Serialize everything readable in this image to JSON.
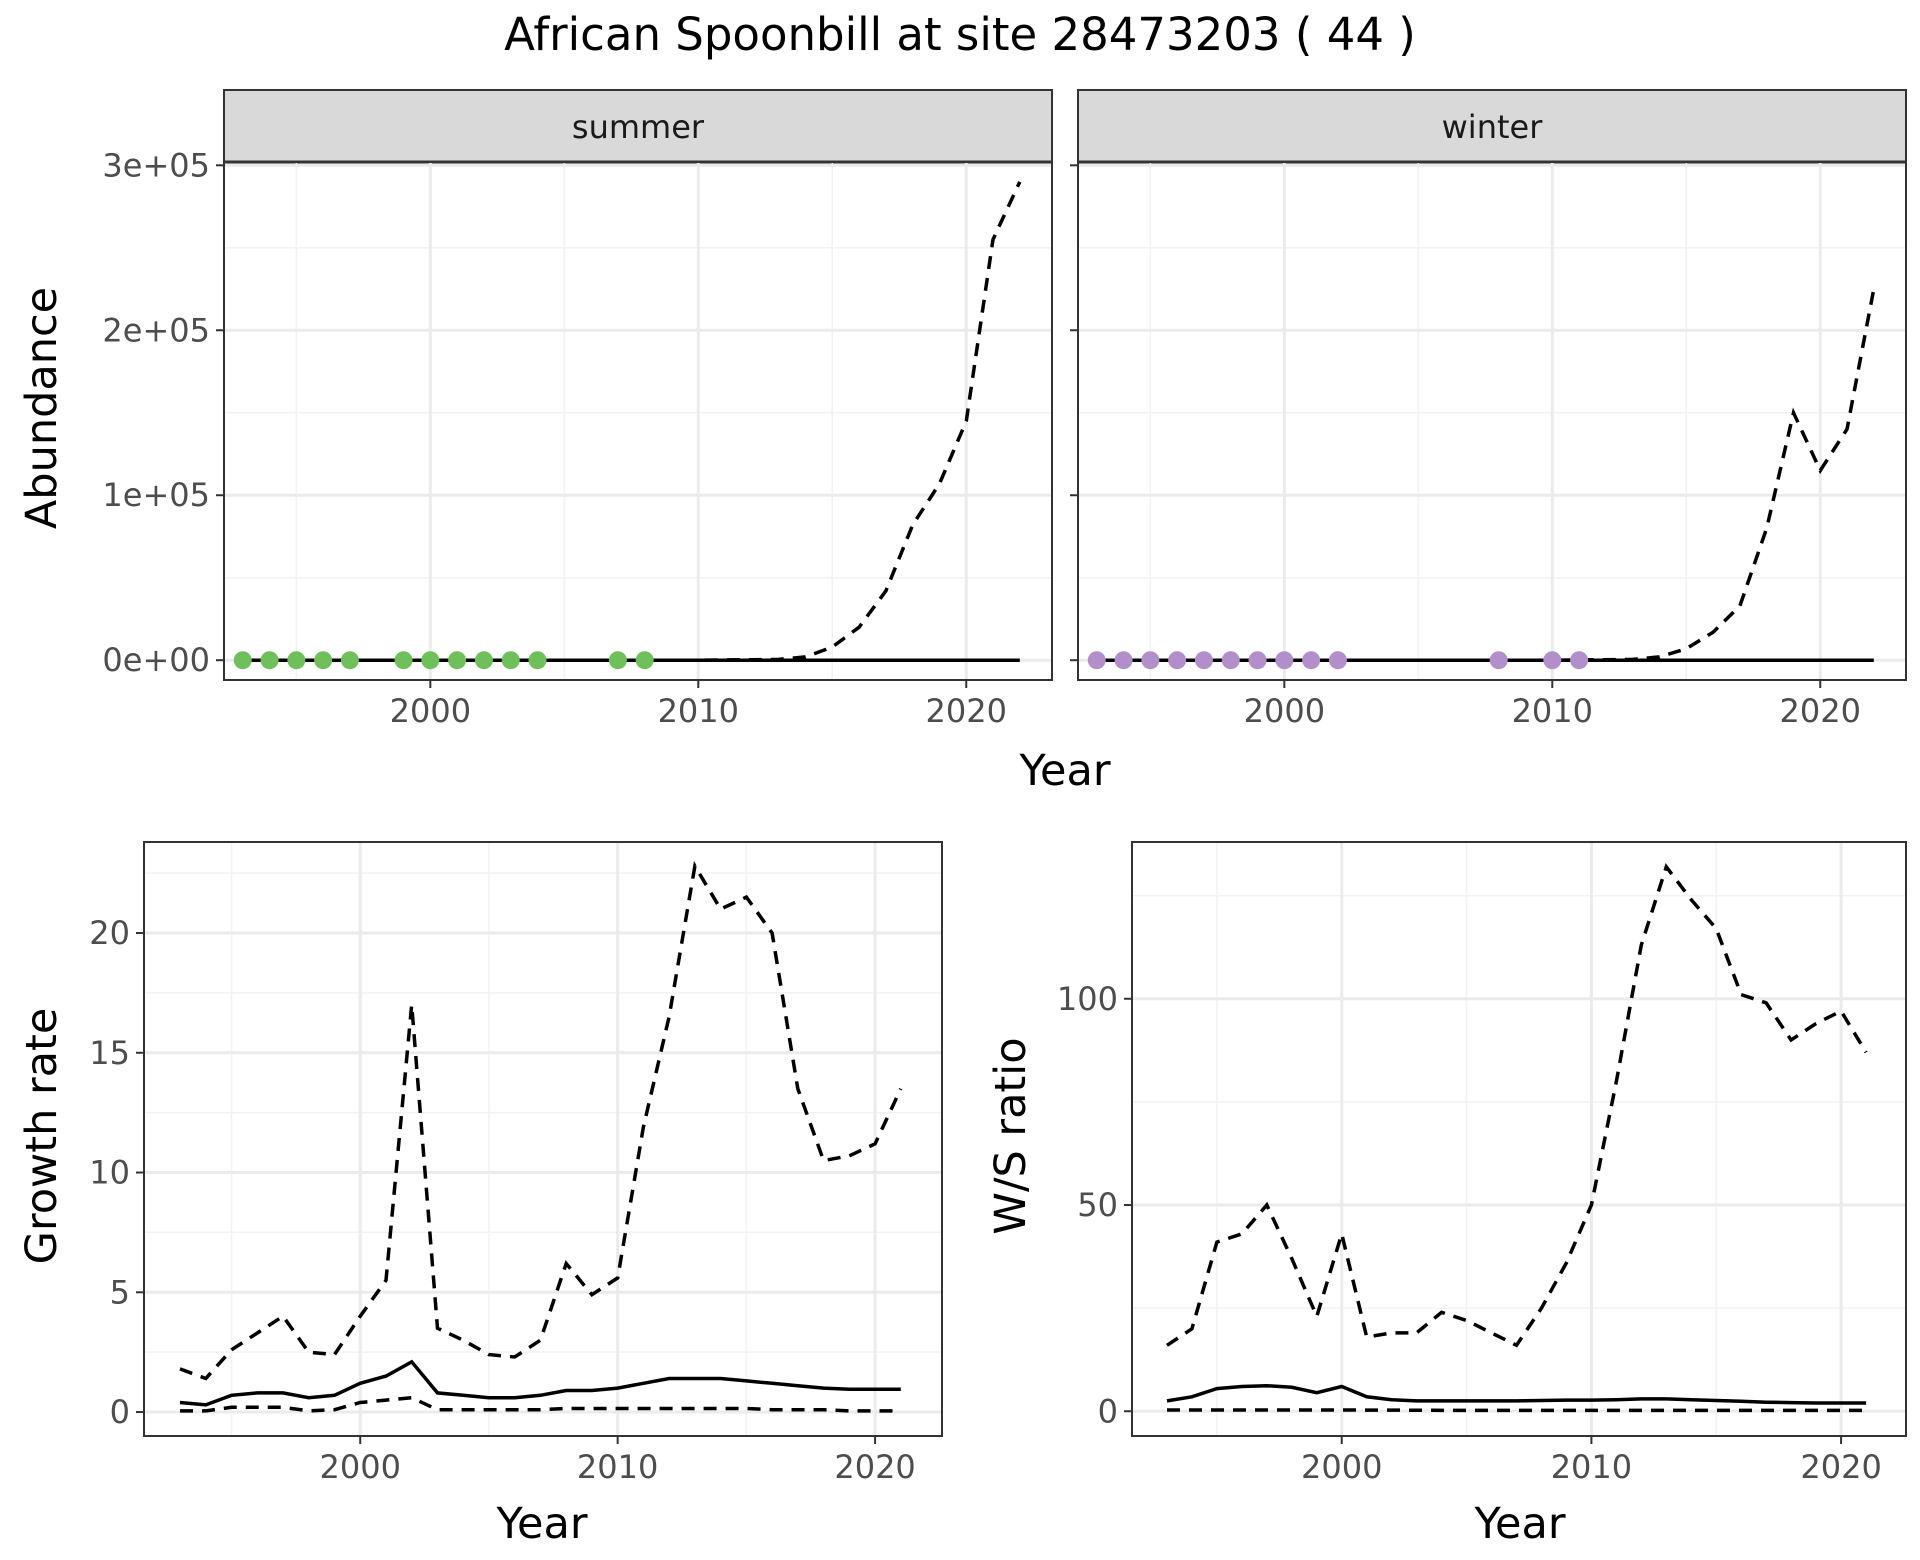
{
  "figure_title": "African Spoonbill at site 28473203 ( 44 )",
  "chart_data": [
    {
      "id": "abundance-summer",
      "type": "line",
      "facet": "summer",
      "xlabel": "",
      "ylabel": "Abundance",
      "xlim": [
        1992.3,
        2023.2
      ],
      "ylim": [
        -12000,
        302000
      ],
      "x_ticks": [
        2000,
        2010,
        2020
      ],
      "x_tick_labels": [
        "2000",
        "2010",
        "2020"
      ],
      "y_ticks": [
        0,
        100000,
        200000,
        300000
      ],
      "y_tick_labels": [
        "0e+00",
        "1e+05",
        "2e+05",
        "3e+05"
      ],
      "grid": true,
      "series": [
        {
          "style": "solid",
          "x": [
            1993,
            2022
          ],
          "values": [
            0,
            0
          ]
        },
        {
          "style": "dashed",
          "x": [
            1993,
            1995,
            2000,
            2005,
            2010,
            2013,
            2014,
            2015,
            2016,
            2017,
            2018,
            2019,
            2020,
            2021,
            2022
          ],
          "values": [
            0,
            0,
            0,
            0,
            0,
            500,
            2000,
            8000,
            20000,
            42000,
            82000,
            107000,
            145000,
            255000,
            290000
          ]
        }
      ],
      "points": {
        "color": "#6fbf5a",
        "x": [
          1993,
          1994,
          1995,
          1996,
          1997,
          1999,
          2000,
          2001,
          2002,
          2003,
          2004,
          2007,
          2008
        ],
        "values": [
          0,
          0,
          0,
          0,
          0,
          0,
          0,
          0,
          0,
          0,
          0,
          0,
          0
        ]
      }
    },
    {
      "id": "abundance-winter",
      "type": "line",
      "facet": "winter",
      "xlabel": "",
      "ylabel": "",
      "xlim": [
        1992.3,
        2023.2
      ],
      "ylim": [
        -12000,
        302000
      ],
      "x_ticks": [
        2000,
        2010,
        2020
      ],
      "x_tick_labels": [
        "2000",
        "2010",
        "2020"
      ],
      "y_ticks": [
        0,
        100000,
        200000,
        300000
      ],
      "y_tick_labels": [],
      "grid": true,
      "series": [
        {
          "style": "solid",
          "x": [
            1993,
            2022
          ],
          "values": [
            0,
            0
          ]
        },
        {
          "style": "dashed",
          "x": [
            1993,
            1995,
            2000,
            2005,
            2010,
            2013,
            2014,
            2015,
            2016,
            2017,
            2018,
            2019,
            2020,
            2021,
            2022
          ],
          "values": [
            0,
            0,
            0,
            0,
            0,
            500,
            2000,
            7000,
            17000,
            33000,
            80000,
            150000,
            115000,
            140000,
            225000
          ]
        }
      ],
      "points": {
        "color": "#b28fcb",
        "x": [
          1993,
          1994,
          1995,
          1996,
          1997,
          1998,
          1999,
          2000,
          2001,
          2002,
          2008,
          2010,
          2011
        ],
        "values": [
          0,
          0,
          0,
          0,
          0,
          0,
          0,
          0,
          0,
          0,
          0,
          0,
          0
        ]
      }
    },
    {
      "id": "growth-rate",
      "type": "line",
      "xlabel": "Year",
      "ylabel": "Growth rate",
      "xlim": [
        1991.6,
        2022.6
      ],
      "ylim": [
        -1.0,
        23.8
      ],
      "x_ticks": [
        2000,
        2010,
        2020
      ],
      "x_tick_labels": [
        "2000",
        "2010",
        "2020"
      ],
      "y_ticks": [
        0,
        5,
        10,
        15,
        20
      ],
      "y_tick_labels": [
        "0",
        "5",
        "10",
        "15",
        "20"
      ],
      "grid": true,
      "series": [
        {
          "style": "dashed",
          "x": [
            1993,
            1994,
            1995,
            1996,
            1997,
            1998,
            1999,
            2000,
            2001,
            2002,
            2003,
            2004,
            2005,
            2006,
            2007,
            2008,
            2009,
            2010,
            2011,
            2012,
            2013,
            2014,
            2015,
            2016,
            2017,
            2018,
            2019,
            2020,
            2021
          ],
          "values": [
            1.8,
            1.4,
            2.6,
            3.3,
            4.0,
            2.5,
            2.4,
            4.0,
            5.5,
            17.0,
            3.5,
            3.0,
            2.4,
            2.3,
            3.0,
            6.2,
            4.9,
            5.6,
            11.9,
            16.5,
            22.8,
            21.0,
            21.5,
            20.0,
            13.5,
            10.5,
            10.7,
            11.2,
            13.5
          ]
        },
        {
          "style": "solid",
          "x": [
            1993,
            1994,
            1995,
            1996,
            1997,
            1998,
            1999,
            2000,
            2001,
            2002,
            2003,
            2004,
            2005,
            2006,
            2007,
            2008,
            2009,
            2010,
            2011,
            2012,
            2013,
            2014,
            2015,
            2016,
            2017,
            2018,
            2019,
            2020,
            2021
          ],
          "values": [
            0.4,
            0.3,
            0.7,
            0.8,
            0.8,
            0.6,
            0.7,
            1.2,
            1.5,
            2.1,
            0.8,
            0.7,
            0.6,
            0.6,
            0.7,
            0.9,
            0.9,
            1.0,
            1.2,
            1.4,
            1.4,
            1.4,
            1.3,
            1.2,
            1.1,
            1.0,
            0.95,
            0.95,
            0.95
          ]
        },
        {
          "style": "dashed",
          "x": [
            1993,
            1994,
            1995,
            1996,
            1997,
            1998,
            1999,
            2000,
            2001,
            2002,
            2003,
            2004,
            2005,
            2006,
            2007,
            2008,
            2009,
            2010,
            2011,
            2012,
            2013,
            2014,
            2015,
            2016,
            2017,
            2018,
            2019,
            2020,
            2021
          ],
          "values": [
            0.05,
            0.05,
            0.2,
            0.2,
            0.2,
            0.05,
            0.1,
            0.4,
            0.5,
            0.6,
            0.1,
            0.1,
            0.1,
            0.1,
            0.1,
            0.15,
            0.15,
            0.15,
            0.15,
            0.15,
            0.15,
            0.15,
            0.15,
            0.1,
            0.1,
            0.1,
            0.05,
            0.05,
            0.05
          ]
        }
      ]
    },
    {
      "id": "ws-ratio",
      "type": "line",
      "xlabel": "Year",
      "ylabel": "W/S ratio",
      "xlim": [
        1991.6,
        2022.6
      ],
      "ylim": [
        -6,
        138
      ],
      "x_ticks": [
        2000,
        2010,
        2020
      ],
      "x_tick_labels": [
        "2000",
        "2010",
        "2020"
      ],
      "y_ticks": [
        0,
        50,
        100
      ],
      "y_tick_labels": [
        "0",
        "50",
        "100"
      ],
      "grid": true,
      "series": [
        {
          "style": "dashed",
          "x": [
            1993,
            1994,
            1995,
            1996,
            1997,
            1998,
            1999,
            2000,
            2001,
            2002,
            2003,
            2004,
            2005,
            2006,
            2007,
            2008,
            2009,
            2010,
            2011,
            2012,
            2013,
            2014,
            2015,
            2016,
            2017,
            2018,
            2019,
            2020,
            2021
          ],
          "values": [
            16,
            20,
            41,
            43,
            50,
            37,
            23,
            43,
            18,
            19,
            19,
            24,
            22,
            19,
            16,
            25,
            36,
            50,
            80,
            113,
            132,
            124,
            117,
            101,
            99,
            90,
            94,
            97,
            87
          ]
        },
        {
          "style": "solid",
          "x": [
            1993,
            1994,
            1995,
            1996,
            1997,
            1998,
            1999,
            2000,
            2001,
            2002,
            2003,
            2004,
            2005,
            2006,
            2007,
            2008,
            2009,
            2010,
            2011,
            2012,
            2013,
            2014,
            2015,
            2016,
            2017,
            2018,
            2019,
            2020,
            2021
          ],
          "values": [
            2.5,
            3.5,
            5.5,
            6,
            6.2,
            5.8,
            4.5,
            6,
            3.5,
            2.8,
            2.5,
            2.5,
            2.5,
            2.5,
            2.5,
            2.6,
            2.7,
            2.7,
            2.8,
            3,
            3,
            2.8,
            2.6,
            2.4,
            2.2,
            2.1,
            2.0,
            2.0,
            2.0
          ]
        },
        {
          "style": "dashed",
          "x": [
            1993,
            1995,
            2000,
            2005,
            2010,
            2015,
            2021
          ],
          "values": [
            0.3,
            0.3,
            0.3,
            0.2,
            0.2,
            0.2,
            0.2
          ]
        }
      ]
    }
  ],
  "axes_text": {
    "abundance_ylabel": "Abundance",
    "top_xlabel": "Year",
    "facet_summer": "summer",
    "facet_winter": "winter",
    "growth_ylabel": "Growth rate",
    "growth_xlabel": "Year",
    "ratio_ylabel": "W/S ratio",
    "ratio_xlabel": "Year"
  }
}
